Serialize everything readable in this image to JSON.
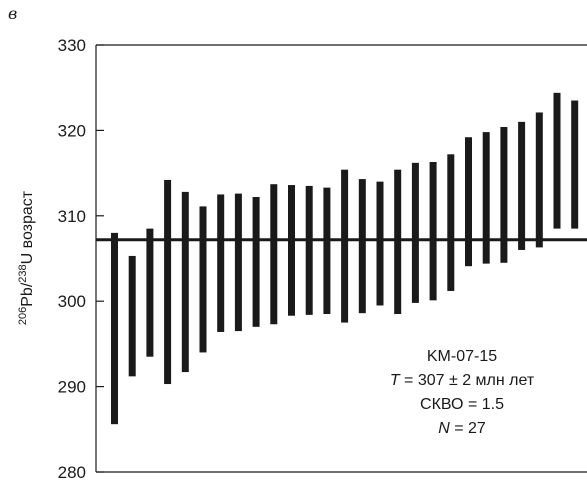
{
  "panel_label": "в",
  "chart_data": {
    "type": "error-bar",
    "ylabel": {
      "superscript1": "206",
      "base1": "Pb/",
      "superscript2": "238",
      "base2": "U возраст"
    },
    "ylim": [
      280,
      330
    ],
    "yticks": [
      280,
      290,
      300,
      310,
      320,
      330
    ],
    "ytick_labels": [
      "280",
      "290",
      "300",
      "310",
      "320",
      "330"
    ],
    "grid": false,
    "mean_line": 307.2,
    "bars": [
      {
        "low": 285.6,
        "high": 308.0
      },
      {
        "low": 291.2,
        "high": 305.3
      },
      {
        "low": 293.5,
        "high": 308.5
      },
      {
        "low": 290.3,
        "high": 314.2
      },
      {
        "low": 291.7,
        "high": 312.8
      },
      {
        "low": 294.0,
        "high": 311.1
      },
      {
        "low": 296.4,
        "high": 312.5
      },
      {
        "low": 296.5,
        "high": 312.6
      },
      {
        "low": 297.0,
        "high": 312.2
      },
      {
        "low": 297.3,
        "high": 313.7
      },
      {
        "low": 298.3,
        "high": 313.6
      },
      {
        "low": 298.4,
        "high": 313.5
      },
      {
        "low": 298.5,
        "high": 313.3
      },
      {
        "low": 297.5,
        "high": 315.4
      },
      {
        "low": 298.6,
        "high": 314.3
      },
      {
        "low": 299.5,
        "high": 314.0
      },
      {
        "low": 298.5,
        "high": 315.4
      },
      {
        "low": 299.8,
        "high": 316.2
      },
      {
        "low": 300.1,
        "high": 316.3
      },
      {
        "low": 301.2,
        "high": 317.2
      },
      {
        "low": 304.1,
        "high": 319.2
      },
      {
        "low": 304.4,
        "high": 319.8
      },
      {
        "low": 304.5,
        "high": 320.4
      },
      {
        "low": 306.0,
        "high": 321.0
      },
      {
        "low": 306.3,
        "high": 322.1
      },
      {
        "low": 308.5,
        "high": 324.4
      },
      {
        "low": 308.5,
        "high": 323.5
      }
    ],
    "annotation": {
      "sample": "KM-07-15",
      "t_label": "T",
      "t_value": " = 307 ± 2 млн лет",
      "mswd": "СКВО = 1.5",
      "n_label": "N",
      "n_value": " = 27"
    },
    "colors": {
      "bars": "#1a1a1a",
      "axes": "#1a1a1a",
      "mean_line": "#1a1a1a"
    }
  }
}
